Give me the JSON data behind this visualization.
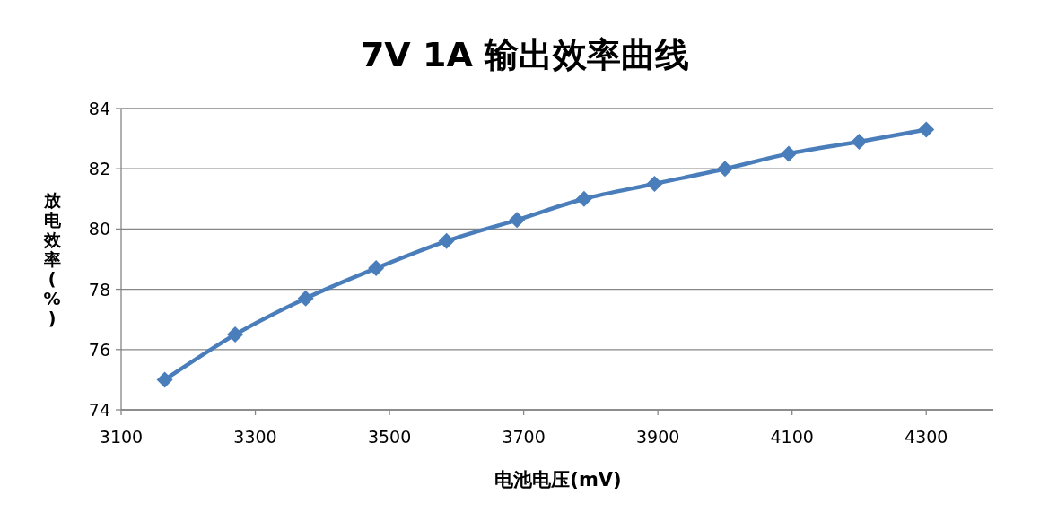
{
  "chart_data": {
    "type": "line",
    "title": "7V 1A 输出效率曲线",
    "xlabel": "电池电压(mV)",
    "ylabel": "放电效率(%)",
    "x": [
      3165,
      3270,
      3375,
      3480,
      3585,
      3690,
      3790,
      3895,
      4000,
      4095,
      4200,
      4300
    ],
    "series": [
      {
        "color": "#4a7ebb",
        "values": [
          75.0,
          76.5,
          77.7,
          78.7,
          79.6,
          80.3,
          81.0,
          81.5,
          82.0,
          82.5,
          82.9,
          83.3
        ]
      }
    ],
    "xlim": [
      3100,
      4400
    ],
    "xticks": [
      3100,
      3300,
      3500,
      3700,
      3900,
      4100,
      4300
    ],
    "ylim": [
      74,
      84
    ],
    "yticks": [
      74,
      76,
      78,
      80,
      82,
      84
    ],
    "grid": "y",
    "marker": "diamond",
    "line_style": "solid"
  }
}
